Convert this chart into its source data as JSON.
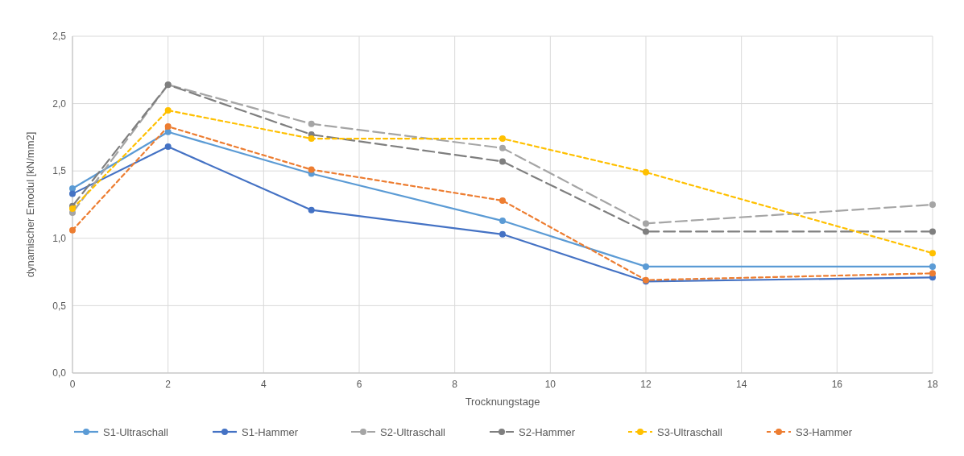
{
  "chart_data": {
    "type": "line",
    "xlabel": "Trocknungstage",
    "ylabel": "dynamischer Emodul [kN/mm2]",
    "x": [
      0,
      2,
      5,
      9,
      12,
      18
    ],
    "xlim": [
      0,
      18
    ],
    "xticks": [
      0,
      2,
      4,
      6,
      8,
      10,
      12,
      14,
      16,
      18
    ],
    "ylim": [
      0,
      2.5
    ],
    "yticks": [
      {
        "value": 0,
        "label": "0,0"
      },
      {
        "value": 0.5,
        "label": "0,5"
      },
      {
        "value": 1,
        "label": "1,0"
      },
      {
        "value": 1.5,
        "label": "1,5"
      },
      {
        "value": 2,
        "label": "2,0"
      },
      {
        "value": 2.5,
        "label": "2,5"
      }
    ],
    "grid": true,
    "legend": "bottom",
    "marker": "circle",
    "series": [
      {
        "name": "S1-Ultraschall",
        "color": "#5b9bd5",
        "line_style": "solid",
        "values": [
          1.37,
          1.79,
          1.48,
          1.13,
          0.79,
          0.79
        ]
      },
      {
        "name": "S1-Hammer",
        "color": "#4472c4",
        "line_style": "solid",
        "values": [
          1.33,
          1.68,
          1.21,
          1.03,
          0.68,
          0.71
        ]
      },
      {
        "name": "S2-Ultraschall",
        "color": "#a5a5a5",
        "line_style": "dashed",
        "values": [
          1.19,
          2.14,
          1.85,
          1.67,
          1.11,
          1.25
        ]
      },
      {
        "name": "S2-Hammer",
        "color": "#7f7f7f",
        "line_style": "dashed",
        "values": [
          1.24,
          2.14,
          1.77,
          1.57,
          1.05,
          1.05
        ]
      },
      {
        "name": "S3-Ultraschall",
        "color": "#ffc000",
        "line_style": "dotted",
        "values": [
          1.22,
          1.95,
          1.74,
          1.74,
          1.49,
          0.89
        ]
      },
      {
        "name": "S3-Hammer",
        "color": "#ed7d31",
        "line_style": "dotted",
        "values": [
          1.06,
          1.83,
          1.51,
          1.28,
          0.69,
          0.74
        ]
      }
    ]
  }
}
